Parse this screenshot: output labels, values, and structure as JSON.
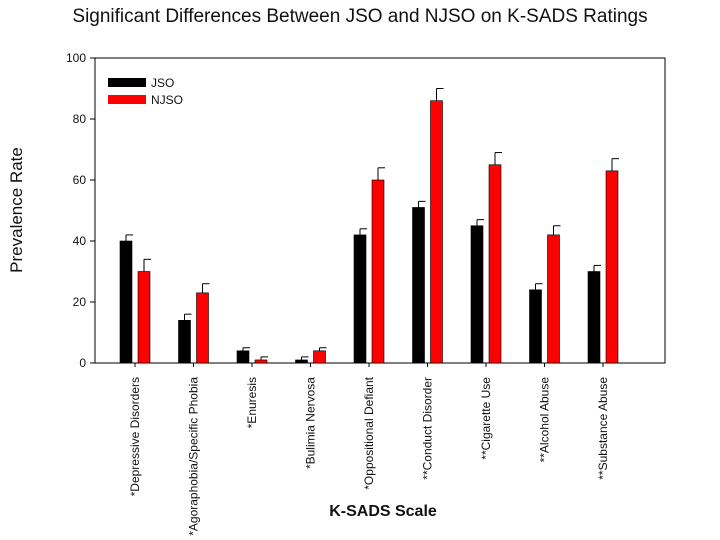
{
  "chart_data": {
    "type": "bar",
    "title": "Significant Differences Between JSO and NJSO on K-SADS Ratings",
    "xlabel": "K-SADS Scale",
    "ylabel": "Prevalence Rate",
    "ylim": [
      0,
      100
    ],
    "yticks": [
      0,
      20,
      40,
      60,
      80,
      100
    ],
    "categories": [
      "*Depressive Disorders",
      "*Agoraphobia/Specific Phobia",
      "*Enuresis",
      "*Bulimia Nervosa",
      "*Oppositional Defiant",
      "**Conduct Disorder",
      "**Cigarette Use",
      "**Alcohol Abuse",
      "**Substance Abuse"
    ],
    "series": [
      {
        "name": "JSO",
        "color": "#000000",
        "values": [
          40,
          14,
          4,
          1,
          42,
          51,
          45,
          24,
          30
        ],
        "errors": [
          2,
          2,
          1,
          1,
          2,
          2,
          2,
          2,
          2
        ]
      },
      {
        "name": "NJSO",
        "color": "#ff0000",
        "values": [
          30,
          23,
          1,
          4,
          60,
          86,
          65,
          42,
          63
        ],
        "errors": [
          4,
          3,
          1,
          1,
          4,
          4,
          4,
          3,
          4
        ]
      }
    ],
    "legend_position": "top-left",
    "grid": false
  }
}
